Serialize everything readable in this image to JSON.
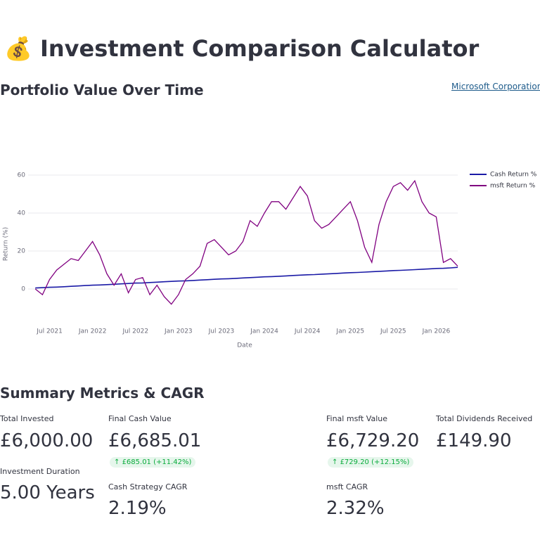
{
  "header": {
    "icon": "💰",
    "title": "Investment Comparison Calculator"
  },
  "chart_section": {
    "title": "Portfolio Value Over Time",
    "link": "Microsoft Corporation"
  },
  "chart_data": {
    "type": "line",
    "xlabel": "Date",
    "ylabel": "Return (%)",
    "x": [
      "2021-05",
      "2021-06",
      "2021-07",
      "2021-08",
      "2021-09",
      "2021-10",
      "2021-11",
      "2021-12",
      "2022-01",
      "2022-02",
      "2022-03",
      "2022-04",
      "2022-05",
      "2022-06",
      "2022-07",
      "2022-08",
      "2022-09",
      "2022-10",
      "2022-11",
      "2022-12",
      "2023-01",
      "2023-02",
      "2023-03",
      "2023-04",
      "2023-05",
      "2023-06",
      "2023-07",
      "2023-08",
      "2023-09",
      "2023-10",
      "2023-11",
      "2023-12",
      "2024-01",
      "2024-02",
      "2024-03",
      "2024-04",
      "2024-05",
      "2024-06",
      "2024-07",
      "2024-08",
      "2024-09",
      "2024-10",
      "2024-11",
      "2024-12",
      "2025-01",
      "2025-02",
      "2025-03",
      "2025-04",
      "2025-05",
      "2025-06",
      "2025-07",
      "2025-08",
      "2025-09",
      "2025-10",
      "2025-11",
      "2025-12",
      "2026-01",
      "2026-02",
      "2026-03",
      "2026-04"
    ],
    "series": [
      {
        "name": "Cash Return %",
        "color": "#1a1aa6",
        "values": [
          0.5,
          0.7,
          0.9,
          1.0,
          1.2,
          1.4,
          1.6,
          1.8,
          2.0,
          2.1,
          2.3,
          2.5,
          2.7,
          2.9,
          3.1,
          3.2,
          3.4,
          3.6,
          3.8,
          4.0,
          4.2,
          4.3,
          4.5,
          4.7,
          4.9,
          5.1,
          5.3,
          5.4,
          5.6,
          5.8,
          6.0,
          6.2,
          6.4,
          6.5,
          6.7,
          6.9,
          7.1,
          7.3,
          7.5,
          7.6,
          7.8,
          8.0,
          8.2,
          8.4,
          8.6,
          8.7,
          8.9,
          9.1,
          9.3,
          9.5,
          9.7,
          9.8,
          10.0,
          10.2,
          10.4,
          10.6,
          10.8,
          10.9,
          11.1,
          11.4
        ]
      },
      {
        "name": "msft Return %",
        "color": "#800080",
        "values": [
          0,
          -3,
          5,
          10,
          13,
          16,
          15,
          20,
          25,
          18,
          8,
          2,
          8,
          -2,
          5,
          6,
          -3,
          2,
          -4,
          -8,
          -3,
          5,
          8,
          12,
          24,
          26,
          22,
          18,
          20,
          25,
          36,
          33,
          40,
          46,
          46,
          42,
          48,
          54,
          49,
          36,
          32,
          34,
          38,
          42,
          46,
          36,
          22,
          14,
          34,
          46,
          54,
          56,
          52,
          57,
          46,
          40,
          38,
          14,
          16,
          12
        ]
      }
    ],
    "xlim": [
      "2021-04",
      "2026-04"
    ],
    "xticks": [
      {
        "value": "2021-07",
        "label": "Jul 2021"
      },
      {
        "value": "2022-01",
        "label": "Jan 2022"
      },
      {
        "value": "2022-07",
        "label": "Jul 2022"
      },
      {
        "value": "2023-01",
        "label": "Jan 2023"
      },
      {
        "value": "2023-07",
        "label": "Jul 2023"
      },
      {
        "value": "2024-01",
        "label": "Jan 2024"
      },
      {
        "value": "2024-07",
        "label": "Jul 2024"
      },
      {
        "value": "2025-01",
        "label": "Jan 2025"
      },
      {
        "value": "2025-07",
        "label": "Jul 2025"
      },
      {
        "value": "2026-01",
        "label": "Jan 2026"
      }
    ],
    "ylim": [
      -15,
      65
    ],
    "yticks": [
      0,
      20,
      40,
      60
    ],
    "grid": true,
    "legend": "right"
  },
  "summary": {
    "title": "Summary Metrics & CAGR",
    "metrics": [
      {
        "label": "Total Invested",
        "value": "£6,000.00"
      },
      {
        "label": "Investment Duration",
        "value": "5.00 Years"
      },
      {
        "label": "Final Cash Value",
        "value": "£6,685.01",
        "delta": "£685.01 (+11.42%)"
      },
      {
        "label": "Cash Strategy CAGR",
        "value": "2.19%"
      },
      {
        "label": "Final msft Value",
        "value": "£6,729.20",
        "delta": "£729.20 (+12.15%)"
      },
      {
        "label": "msft CAGR",
        "value": "2.32%"
      },
      {
        "label": "Total Dividends Received",
        "value": "£149.90"
      }
    ]
  }
}
